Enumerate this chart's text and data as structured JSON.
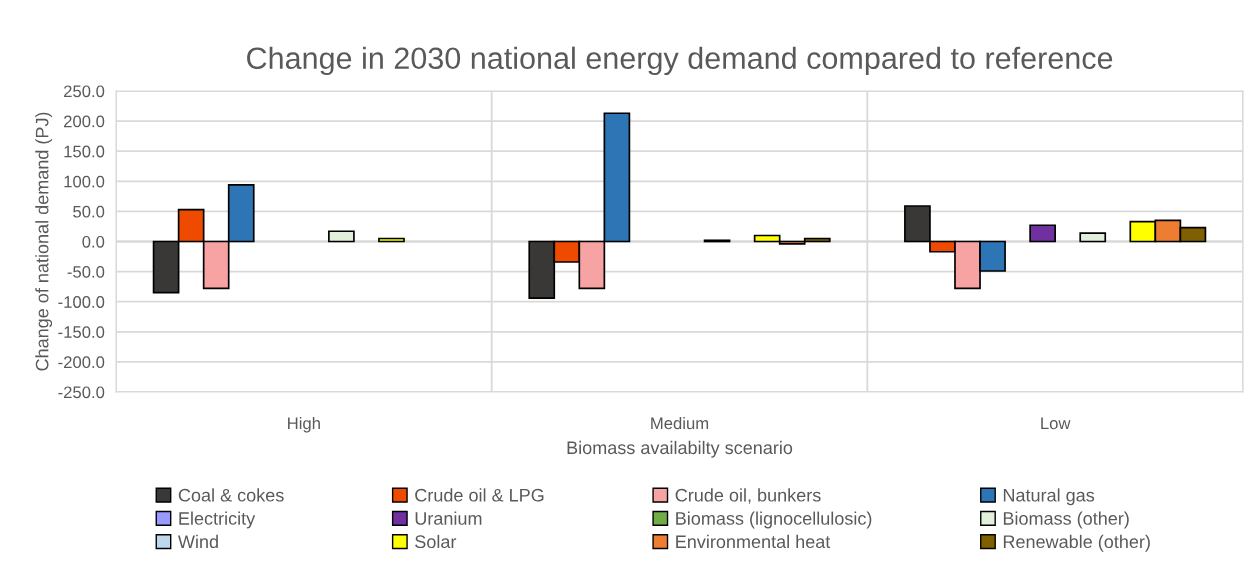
{
  "chart_data": {
    "type": "bar",
    "title": "Change in 2030 national energy demand compared to reference",
    "xlabel": "Biomass availabilty scenario",
    "ylabel": "Change of national demand (PJ)",
    "categories": [
      "High",
      "Medium",
      "Low"
    ],
    "series": [
      {
        "name": "Coal & cokes",
        "color": "#3a3836",
        "values": [
          -85,
          -94,
          59
        ]
      },
      {
        "name": "Crude oil & LPG",
        "color": "#ee4b00",
        "values": [
          53,
          -34,
          -17
        ]
      },
      {
        "name": "Crude oil, bunkers",
        "color": "#f7a3a3",
        "values": [
          -78,
          -78,
          -78
        ]
      },
      {
        "name": "Natural gas",
        "color": "#2e75b6",
        "values": [
          94,
          213,
          -49
        ]
      },
      {
        "name": "Electricity",
        "color": "#9999ff",
        "values": [
          null,
          null,
          null
        ]
      },
      {
        "name": "Uranium",
        "color": "#7030a0",
        "values": [
          null,
          null,
          27
        ]
      },
      {
        "name": "Biomass (lignocellulosic)",
        "color": "#70ad47",
        "values": [
          null,
          null,
          null
        ]
      },
      {
        "name": "Biomass (other)",
        "color": "#e2efda",
        "values": [
          17,
          2,
          14
        ]
      },
      {
        "name": "Wind",
        "color": "#bdd7ee",
        "values": [
          null,
          null,
          null
        ]
      },
      {
        "name": "Solar",
        "color": "#ffff00",
        "values": [
          5,
          10,
          33
        ]
      },
      {
        "name": "Environmental heat",
        "color": "#ed7d31",
        "values": [
          null,
          -4,
          35
        ]
      },
      {
        "name": "Renewable (other)",
        "color": "#7f6000",
        "values": [
          null,
          5,
          23
        ]
      }
    ],
    "ylim": [
      -250,
      250
    ],
    "yticks": [
      {
        "value": -250,
        "label": "-250.0"
      },
      {
        "value": -200,
        "label": "-200.0"
      },
      {
        "value": -150,
        "label": "-150.0"
      },
      {
        "value": -100,
        "label": "-100.0"
      },
      {
        "value": -50,
        "label": "-50.0"
      },
      {
        "value": 0,
        "label": "0.0"
      },
      {
        "value": 50,
        "label": "50.0"
      },
      {
        "value": 100,
        "label": "100.0"
      },
      {
        "value": 150,
        "label": "150.0"
      },
      {
        "value": 200,
        "label": "200.0"
      },
      {
        "value": 250,
        "label": "250.0"
      }
    ],
    "grid": true,
    "legend": "bottom"
  }
}
